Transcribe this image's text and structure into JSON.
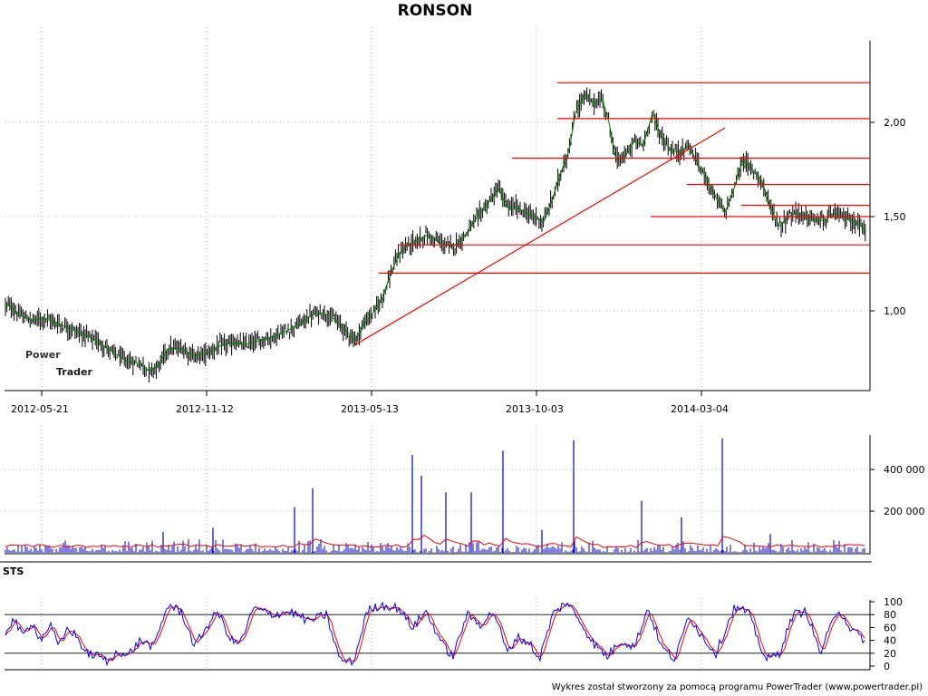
{
  "title": "RONSON",
  "stochastic_label": "STS",
  "footer": "Wykres został stworzony za pomocą programu PowerTrader (www.powertrader.pl)",
  "watermark": "PowerTrader",
  "colors": {
    "candle": "#000000",
    "sma": "#008000",
    "lines": "#ff0000",
    "volume": "#0000cc",
    "volume_avg": "#ff0000",
    "sto_k": "#0000ff",
    "sto_d": "#ff0000",
    "grid": "#808080"
  },
  "chart_data": [
    {
      "type": "line",
      "title": "RONSON",
      "x_tick_labels": [
        "2012-05-21",
        "2012-11-12",
        "2013-05-13",
        "2013-10-03",
        "2014-03-04"
      ],
      "y_tick_labels": [
        "1,00",
        "1,50",
        "2,00"
      ],
      "ylim": [
        0.65,
        2.45
      ],
      "grid": true,
      "price_path": [
        [
          0,
          1.03
        ],
        [
          10,
          1.03
        ],
        [
          20,
          0.98
        ],
        [
          35,
          0.95
        ],
        [
          50,
          0.96
        ],
        [
          65,
          0.93
        ],
        [
          80,
          0.9
        ],
        [
          95,
          0.87
        ],
        [
          110,
          0.83
        ],
        [
          125,
          0.78
        ],
        [
          140,
          0.73
        ],
        [
          155,
          0.72
        ],
        [
          165,
          0.68
        ],
        [
          175,
          0.71
        ],
        [
          185,
          0.8
        ],
        [
          200,
          0.8
        ],
        [
          215,
          0.76
        ],
        [
          230,
          0.78
        ],
        [
          245,
          0.82
        ],
        [
          260,
          0.83
        ],
        [
          270,
          0.82
        ],
        [
          285,
          0.84
        ],
        [
          300,
          0.86
        ],
        [
          315,
          0.89
        ],
        [
          330,
          0.93
        ],
        [
          345,
          0.98
        ],
        [
          355,
          0.99
        ],
        [
          365,
          0.97
        ],
        [
          375,
          0.93
        ],
        [
          385,
          0.88
        ],
        [
          392,
          0.84
        ],
        [
          400,
          0.92
        ],
        [
          410,
          0.98
        ],
        [
          420,
          1.05
        ],
        [
          430,
          1.18
        ],
        [
          440,
          1.3
        ],
        [
          450,
          1.35
        ],
        [
          460,
          1.37
        ],
        [
          470,
          1.4
        ],
        [
          480,
          1.38
        ],
        [
          490,
          1.35
        ],
        [
          500,
          1.34
        ],
        [
          510,
          1.38
        ],
        [
          520,
          1.45
        ],
        [
          530,
          1.52
        ],
        [
          540,
          1.58
        ],
        [
          550,
          1.65
        ],
        [
          560,
          1.55
        ],
        [
          570,
          1.55
        ],
        [
          580,
          1.52
        ],
        [
          590,
          1.5
        ],
        [
          600,
          1.47
        ],
        [
          610,
          1.6
        ],
        [
          620,
          1.75
        ],
        [
          628,
          1.85
        ],
        [
          635,
          2.05
        ],
        [
          645,
          2.15
        ],
        [
          655,
          2.1
        ],
        [
          665,
          2.12
        ],
        [
          672,
          2.0
        ],
        [
          680,
          1.8
        ],
        [
          690,
          1.82
        ],
        [
          700,
          1.9
        ],
        [
          710,
          1.88
        ],
        [
          720,
          2.05
        ],
        [
          730,
          1.92
        ],
        [
          740,
          1.85
        ],
        [
          750,
          1.84
        ],
        [
          760,
          1.88
        ],
        [
          770,
          1.78
        ],
        [
          780,
          1.7
        ],
        [
          790,
          1.6
        ],
        [
          800,
          1.52
        ],
        [
          810,
          1.65
        ],
        [
          820,
          1.8
        ],
        [
          830,
          1.75
        ],
        [
          840,
          1.7
        ],
        [
          850,
          1.55
        ],
        [
          860,
          1.45
        ],
        [
          870,
          1.5
        ],
        [
          880,
          1.52
        ],
        [
          890,
          1.5
        ],
        [
          900,
          1.48
        ],
        [
          910,
          1.48
        ],
        [
          920,
          1.52
        ],
        [
          930,
          1.5
        ],
        [
          940,
          1.48
        ],
        [
          950,
          1.45
        ],
        [
          955,
          1.42
        ]
      ],
      "series": [
        {
          "values": [
            1.05
          ]
        },
        {
          "values": [
            1.05
          ]
        },
        {
          "values": [
            1.05
          ]
        }
      ],
      "support_resistance_levels": [
        2.21,
        2.02,
        1.81,
        1.67,
        1.56,
        1.5,
        1.35,
        1.2
      ],
      "trendline": {
        "from": [
          392,
          0.82
        ],
        "to": [
          800,
          1.97
        ]
      }
    },
    {
      "type": "bar",
      "y_tick_labels": [
        "200 000",
        "400 000"
      ],
      "ylim": [
        0,
        600000
      ],
      "spikes": [
        [
          325,
          220000
        ],
        [
          345,
          310000
        ],
        [
          455,
          470000
        ],
        [
          465,
          370000
        ],
        [
          492,
          290000
        ],
        [
          520,
          290000
        ],
        [
          555,
          490000
        ],
        [
          633,
          540000
        ],
        [
          708,
          250000
        ],
        [
          797,
          550000
        ],
        [
          235,
          120000
        ],
        [
          180,
          100000
        ],
        [
          598,
          110000
        ],
        [
          752,
          170000
        ],
        [
          850,
          90000
        ]
      ],
      "baseline_level": 25000
    },
    {
      "type": "line",
      "y_tick_labels": [
        "0",
        "20",
        "40",
        "60",
        "80",
        "100"
      ],
      "ylim": [
        0,
        100
      ],
      "reference_lines": [
        20,
        80
      ],
      "stochastic_k_anchors": [
        [
          5,
          50
        ],
        [
          15,
          75
        ],
        [
          25,
          45
        ],
        [
          35,
          70
        ],
        [
          45,
          40
        ],
        [
          55,
          65
        ],
        [
          65,
          30
        ],
        [
          75,
          60
        ],
        [
          85,
          45
        ],
        [
          95,
          20
        ],
        [
          110,
          15
        ],
        [
          120,
          5
        ],
        [
          130,
          25
        ],
        [
          140,
          15
        ],
        [
          155,
          40
        ],
        [
          170,
          30
        ],
        [
          185,
          95
        ],
        [
          200,
          85
        ],
        [
          215,
          30
        ],
        [
          225,
          55
        ],
        [
          240,
          85
        ],
        [
          255,
          40
        ],
        [
          265,
          35
        ],
        [
          280,
          90
        ],
        [
          300,
          80
        ],
        [
          320,
          85
        ],
        [
          340,
          70
        ],
        [
          360,
          80
        ],
        [
          375,
          10
        ],
        [
          390,
          5
        ],
        [
          405,
          85
        ],
        [
          420,
          95
        ],
        [
          440,
          90
        ],
        [
          455,
          60
        ],
        [
          470,
          85
        ],
        [
          490,
          30
        ],
        [
          500,
          15
        ],
        [
          515,
          80
        ],
        [
          530,
          65
        ],
        [
          545,
          85
        ],
        [
          560,
          20
        ],
        [
          570,
          45
        ],
        [
          585,
          35
        ],
        [
          595,
          10
        ],
        [
          610,
          80
        ],
        [
          625,
          100
        ],
        [
          640,
          70
        ],
        [
          655,
          35
        ],
        [
          670,
          15
        ],
        [
          685,
          40
        ],
        [
          700,
          30
        ],
        [
          715,
          90
        ],
        [
          730,
          30
        ],
        [
          745,
          10
        ],
        [
          760,
          80
        ],
        [
          775,
          45
        ],
        [
          790,
          20
        ],
        [
          810,
          90
        ],
        [
          825,
          85
        ],
        [
          845,
          10
        ],
        [
          860,
          20
        ],
        [
          875,
          80
        ],
        [
          890,
          85
        ],
        [
          905,
          20
        ],
        [
          925,
          90
        ],
        [
          940,
          55
        ],
        [
          955,
          40
        ]
      ]
    }
  ]
}
